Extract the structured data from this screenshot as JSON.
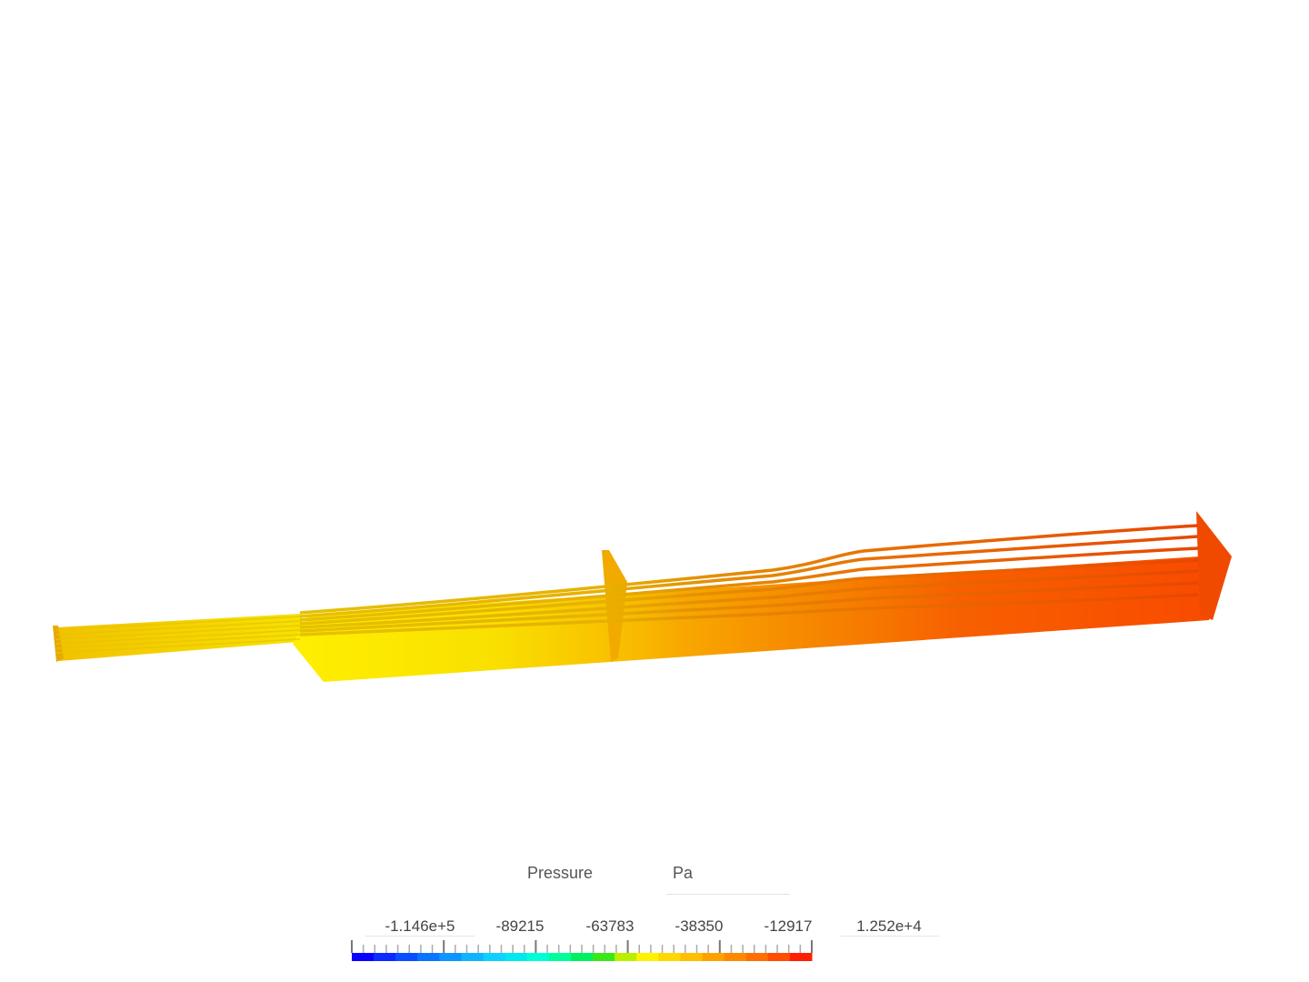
{
  "legend": {
    "field_label": "Pressure",
    "unit_label": "Pa",
    "tick_labels": [
      "-1.146e+5",
      "-89215",
      "-63783",
      "-38350",
      "-12917",
      "1.252e+4"
    ],
    "colormap": [
      "#0a00ff",
      "#0a2cff",
      "#0a4fff",
      "#0a74ff",
      "#0c96ff",
      "#10b4ff",
      "#0fd0ff",
      "#00e8f0",
      "#00ffd4",
      "#00ff9a",
      "#00f060",
      "#3ae81a",
      "#b8f000",
      "#fff200",
      "#ffd800",
      "#ffbe00",
      "#ffa200",
      "#ff8a00",
      "#ff6e00",
      "#ff4e00",
      "#ff1e00"
    ]
  },
  "scene": {
    "inlet_color": "#f4b000",
    "low_color": "#ffef00",
    "mid_color": "#f9c400",
    "high_color": "#f98a00",
    "outlet_color": "#f95200"
  }
}
